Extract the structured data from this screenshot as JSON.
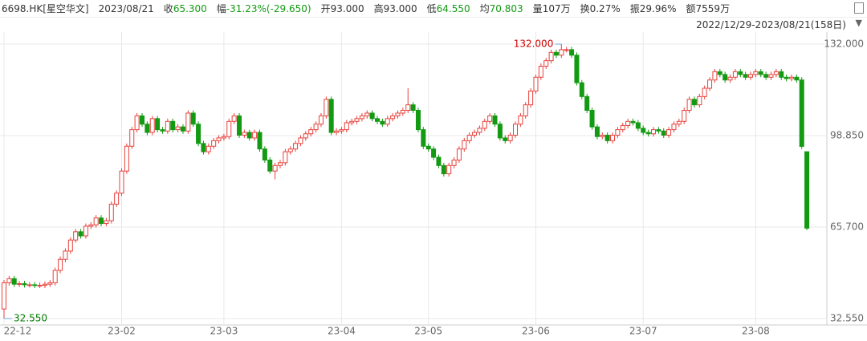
{
  "header": {
    "symbol": "6698.HK[星空华文]",
    "date": "2023/08/21",
    "items": [
      {
        "label": "收",
        "value": "65.300",
        "color": "#129a12"
      },
      {
        "label": "幅",
        "value": "-31.23%(-29.650)",
        "color": "#129a12"
      },
      {
        "label": "开",
        "value": "93.000",
        "color": "#333333"
      },
      {
        "label": "高",
        "value": "93.000",
        "color": "#333333"
      },
      {
        "label": "低",
        "value": "64.550",
        "color": "#129a12"
      },
      {
        "label": "均",
        "value": "70.803",
        "color": "#129a12"
      },
      {
        "label": "量",
        "value": "107万",
        "color": "#333333"
      },
      {
        "label": "换",
        "value": "0.27%",
        "color": "#333333"
      },
      {
        "label": "振",
        "value": "29.96%",
        "color": "#333333"
      },
      {
        "label": "额",
        "value": "7559万",
        "color": "#333333"
      }
    ],
    "range": "2022/12/29-2023/08/21(158日)"
  },
  "chart_data": {
    "type": "candlestick",
    "up_color": "#e8413c",
    "down_color": "#129a12",
    "grid": true,
    "ylim": [
      32.55,
      132
    ],
    "yticks": [
      {
        "value": 132,
        "label": "132.000"
      },
      {
        "value": 98.85,
        "label": "98.850"
      },
      {
        "value": 65.7,
        "label": "65.700"
      },
      {
        "value": 32.55,
        "label": "32.550"
      }
    ],
    "annotations": [
      {
        "value": 132,
        "label": "132.000",
        "color": "#d40000"
      },
      {
        "value": 32.55,
        "label": "32.550",
        "color": "#007a00"
      }
    ],
    "categories": [
      "22-12",
      null,
      null,
      null,
      null,
      null,
      null,
      null,
      null,
      null,
      null,
      null,
      null,
      null,
      null,
      null,
      null,
      null,
      null,
      null,
      null,
      null,
      null,
      "23-02",
      null,
      null,
      null,
      null,
      null,
      null,
      null,
      null,
      null,
      null,
      null,
      null,
      null,
      null,
      null,
      null,
      null,
      null,
      null,
      "23-03",
      null,
      null,
      null,
      null,
      null,
      null,
      null,
      null,
      null,
      null,
      null,
      null,
      null,
      null,
      null,
      null,
      null,
      null,
      null,
      null,
      null,
      null,
      "23-04",
      null,
      null,
      null,
      null,
      null,
      null,
      null,
      null,
      null,
      null,
      null,
      null,
      null,
      null,
      null,
      null,
      "23-05",
      null,
      null,
      null,
      null,
      null,
      null,
      null,
      null,
      null,
      null,
      null,
      null,
      null,
      null,
      null,
      null,
      null,
      null,
      null,
      null,
      "23-06",
      null,
      null,
      null,
      null,
      null,
      null,
      null,
      null,
      null,
      null,
      null,
      null,
      null,
      null,
      null,
      null,
      null,
      null,
      null,
      null,
      "23-07",
      null,
      null,
      null,
      null,
      null,
      null,
      null,
      null,
      null,
      null,
      null,
      null,
      null,
      null,
      null,
      null,
      null,
      null,
      null,
      null,
      null,
      "23-08",
      null,
      null,
      null,
      null,
      null,
      null,
      null,
      null,
      null,
      null
    ],
    "open": [
      36,
      45.5,
      47,
      45,
      45.2,
      44.8,
      44.8,
      44.6,
      44.6,
      45,
      45.5,
      50,
      54,
      57,
      61,
      64,
      62.5,
      66,
      66.5,
      69,
      67,
      68,
      74,
      78,
      86,
      95,
      101,
      106,
      103,
      100,
      105,
      101,
      100.5,
      104,
      101,
      102,
      100.5,
      107,
      103,
      96,
      93,
      95,
      97,
      98,
      98.5,
      104,
      106,
      99,
      100,
      98,
      100,
      94,
      90,
      86,
      88,
      89,
      93,
      94,
      96,
      98,
      99.5,
      101,
      103,
      106,
      112,
      100,
      100.5,
      101,
      103.5,
      104,
      105,
      106,
      107,
      105,
      104,
      103,
      105,
      106,
      107,
      108,
      110,
      108,
      101,
      95,
      94,
      91,
      88,
      85,
      88,
      90,
      94,
      97,
      99,
      100,
      101.5,
      104,
      106,
      103,
      98,
      97,
      99,
      103,
      106,
      110,
      115,
      120,
      124,
      126,
      129,
      128,
      130,
      130,
      128,
      118,
      113,
      108,
      102,
      98.5,
      99,
      97,
      99,
      101,
      102.5,
      104,
      103.5,
      101.5,
      100,
      99.5,
      101,
      100.5,
      99,
      101,
      103,
      104,
      108,
      112,
      110,
      113,
      116,
      119,
      122,
      121,
      119,
      120,
      122,
      121,
      120,
      121,
      122,
      121,
      120,
      121,
      122,
      120,
      119.5,
      120,
      119,
      93
    ],
    "high": [
      46.5,
      48,
      48,
      46.2,
      46.2,
      45.8,
      45.8,
      45.6,
      46,
      46.5,
      51,
      55,
      58,
      62,
      65,
      65,
      67,
      67.5,
      70,
      70,
      69,
      75,
      79,
      87,
      96,
      102,
      107,
      107,
      104,
      106,
      106,
      102,
      105,
      105,
      103,
      103,
      108,
      108,
      104,
      97,
      96,
      98,
      99,
      99.5,
      105,
      107,
      107,
      101,
      101,
      101,
      101,
      95,
      91,
      89,
      90,
      94,
      95,
      97,
      99,
      100.5,
      102,
      104,
      107,
      113,
      113,
      101.5,
      102,
      104.5,
      105,
      106,
      107,
      108,
      108,
      106,
      105,
      106,
      107,
      108,
      109,
      116,
      111,
      109,
      102,
      96,
      95,
      92,
      89,
      89,
      91,
      95,
      98,
      100,
      101,
      102.5,
      105,
      107,
      107,
      104,
      99,
      100,
      104,
      107,
      111,
      116,
      121,
      125,
      127,
      130,
      130,
      132,
      131,
      131,
      129,
      119,
      114,
      109,
      103,
      100,
      100,
      100,
      102,
      103.5,
      105,
      105,
      104.5,
      102.5,
      101,
      102,
      102,
      101.5,
      102,
      104,
      105,
      109,
      113,
      113,
      114,
      117,
      120,
      123,
      123,
      122,
      121,
      123,
      123,
      122,
      122,
      123,
      123,
      122,
      122,
      123,
      123,
      121,
      121,
      121,
      120,
      93
    ],
    "low": [
      32.55,
      44.5,
      44,
      44,
      43.8,
      43.8,
      43.6,
      43.6,
      43.6,
      44,
      44.5,
      49,
      53,
      56,
      60,
      61.5,
      61.5,
      65,
      65.5,
      66,
      66,
      67,
      73,
      77,
      85,
      94,
      100,
      102,
      99,
      99,
      100,
      99.5,
      99.5,
      100,
      100,
      99.5,
      99.5,
      102,
      95,
      92,
      92,
      94,
      96,
      97,
      97.5,
      103,
      98,
      98,
      97,
      97,
      93,
      89,
      85,
      83,
      87,
      88,
      92,
      93,
      95,
      97,
      98.5,
      100,
      102,
      105,
      99,
      99,
      99.5,
      100,
      102.5,
      103,
      104,
      105,
      104,
      103,
      102,
      102,
      104,
      105,
      106,
      107,
      107,
      100,
      94,
      93,
      90,
      87,
      84,
      84,
      87,
      89,
      93,
      96,
      98,
      99,
      100.5,
      103,
      102,
      97,
      96,
      96,
      98,
      102,
      105,
      109,
      114,
      119,
      123,
      125,
      127,
      127,
      129,
      127,
      117,
      112,
      107,
      101,
      97.5,
      97.5,
      96,
      96,
      98,
      100,
      101.5,
      102.5,
      100.5,
      99,
      98.5,
      98.5,
      99.5,
      98,
      98,
      100,
      102,
      103,
      107,
      109,
      109,
      112,
      115,
      118,
      120,
      118,
      118,
      119,
      120,
      119,
      119,
      120,
      120,
      119,
      119,
      120,
      119,
      118.5,
      118.5,
      118,
      94,
      64.55
    ],
    "close": [
      45.5,
      47,
      45,
      45.2,
      44.8,
      44.8,
      44.6,
      44.6,
      45,
      45.5,
      50,
      54,
      57,
      61,
      64,
      62.5,
      66,
      66.5,
      69,
      67,
      68,
      74,
      78,
      86,
      95,
      101,
      106,
      103,
      100,
      105,
      101,
      100.5,
      104,
      101,
      102,
      100.5,
      107,
      103,
      96,
      93,
      95,
      97,
      98,
      98.5,
      104,
      106,
      99,
      100,
      98,
      100,
      94,
      90,
      86,
      88,
      89,
      93,
      94,
      96,
      98,
      99.5,
      101,
      103,
      106,
      112,
      100,
      100.5,
      101,
      103.5,
      104,
      105,
      106,
      107,
      105,
      104,
      103,
      105,
      106,
      107,
      108,
      110,
      108,
      101,
      95,
      94,
      91,
      88,
      85,
      88,
      90,
      94,
      97,
      99,
      100,
      101.5,
      104,
      106,
      103,
      98,
      97,
      99,
      103,
      106,
      110,
      115,
      120,
      124,
      126,
      129,
      128,
      130,
      130,
      128,
      118,
      113,
      108,
      102,
      98.5,
      99,
      97,
      99,
      101,
      102.5,
      104,
      103.5,
      101.5,
      100,
      99.5,
      101,
      100.5,
      99,
      101,
      103,
      104,
      108,
      112,
      110,
      113,
      116,
      119,
      122,
      121,
      119,
      120,
      122,
      121,
      120,
      121,
      122,
      121,
      120,
      121,
      122,
      120,
      119.5,
      120,
      119,
      94.95,
      65.3
    ]
  }
}
